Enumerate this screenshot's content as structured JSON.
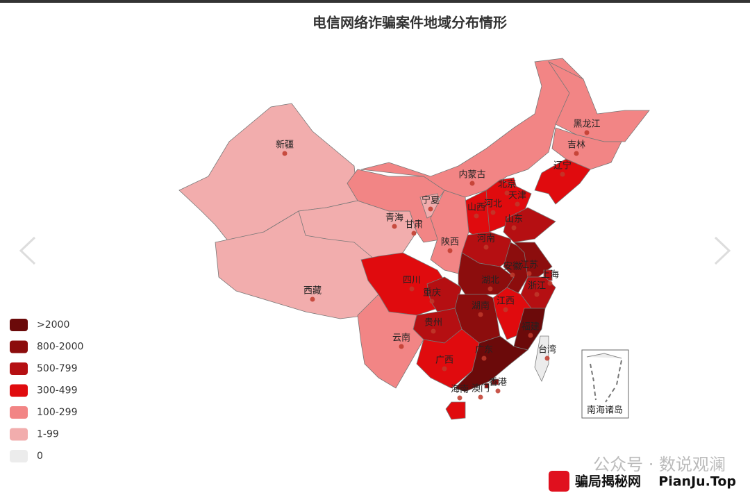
{
  "title": "电信网络诈骗案件地域分布情形",
  "legend": [
    {
      "label": ">2000",
      "color": "#6b0a0a"
    },
    {
      "label": "800-2000",
      "color": "#8c0d0d"
    },
    {
      "label": "500-799",
      "color": "#b50f12"
    },
    {
      "label": "300-499",
      "color": "#e00b0e"
    },
    {
      "label": "100-299",
      "color": "#f28585"
    },
    {
      "label": "1-99",
      "color": "#f2adad"
    },
    {
      "label": "0",
      "color": "#ececec"
    }
  ],
  "regions": [
    {
      "name": "新疆",
      "level": 5
    },
    {
      "name": "西藏",
      "level": 5
    },
    {
      "name": "青海",
      "level": 5
    },
    {
      "name": "甘肃",
      "level": 4
    },
    {
      "name": "宁夏",
      "level": 5
    },
    {
      "name": "内蒙古",
      "level": 4
    },
    {
      "name": "黑龙江",
      "level": 4
    },
    {
      "name": "吉林",
      "level": 4
    },
    {
      "name": "辽宁",
      "level": 3
    },
    {
      "name": "北京",
      "level": 3
    },
    {
      "name": "天津",
      "level": 3
    },
    {
      "name": "河北",
      "level": 3
    },
    {
      "name": "山西",
      "level": 3
    },
    {
      "name": "山东",
      "level": 2
    },
    {
      "name": "河南",
      "level": 2
    },
    {
      "name": "陕西",
      "level": 4
    },
    {
      "name": "四川",
      "level": 3
    },
    {
      "name": "重庆",
      "level": 2
    },
    {
      "name": "湖北",
      "level": 1
    },
    {
      "name": "安徽",
      "level": 1
    },
    {
      "name": "江苏",
      "level": 1
    },
    {
      "name": "上海",
      "level": 2
    },
    {
      "name": "浙江",
      "level": 2
    },
    {
      "name": "湖南",
      "level": 1
    },
    {
      "name": "江西",
      "level": 3
    },
    {
      "name": "福建",
      "level": 0
    },
    {
      "name": "贵州",
      "level": 2
    },
    {
      "name": "云南",
      "level": 4
    },
    {
      "name": "广西",
      "level": 3
    },
    {
      "name": "广东",
      "level": 0
    },
    {
      "name": "海南",
      "level": 3
    },
    {
      "name": "香港",
      "level": 1
    },
    {
      "name": "澳门",
      "level": 1
    },
    {
      "name": "台湾",
      "level": 6
    }
  ],
  "inset_label": "南海诸岛",
  "watermark": "公众号 · 数说观澜",
  "footer": {
    "brand": "骗局揭秘网",
    "site": "PianJu.Top"
  }
}
